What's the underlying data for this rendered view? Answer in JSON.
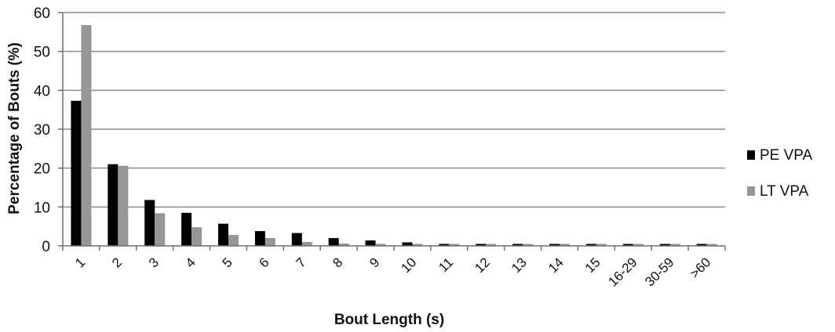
{
  "chart_data": {
    "type": "bar",
    "title": "",
    "xlabel": "Bout Length (s)",
    "ylabel": "Percentage of Bouts (%)",
    "ylim": [
      0,
      60
    ],
    "yticks": [
      0,
      10,
      20,
      30,
      40,
      50,
      60
    ],
    "grid": true,
    "legend_position": "right",
    "categories": [
      "1",
      "2",
      "3",
      "4",
      "5",
      "6",
      "7",
      "8",
      "9",
      "10",
      "11",
      "12",
      "13",
      "14",
      "15",
      "16-29",
      "30-59",
      ">60"
    ],
    "series": [
      {
        "name": "PE VPA",
        "color": "#000000",
        "values": [
          37.3,
          21.0,
          11.8,
          8.5,
          5.7,
          3.8,
          3.3,
          2.0,
          1.4,
          0.9,
          0.5,
          0.5,
          0.5,
          0.5,
          0.5,
          0.5,
          0.5,
          0.5
        ]
      },
      {
        "name": "LT VPA",
        "color": "#969696",
        "values": [
          56.8,
          20.6,
          8.4,
          4.8,
          2.8,
          2.0,
          1.0,
          0.6,
          0.5,
          0.5,
          0.5,
          0.5,
          0.5,
          0.5,
          0.5,
          0.5,
          0.5,
          0.5
        ]
      }
    ]
  }
}
